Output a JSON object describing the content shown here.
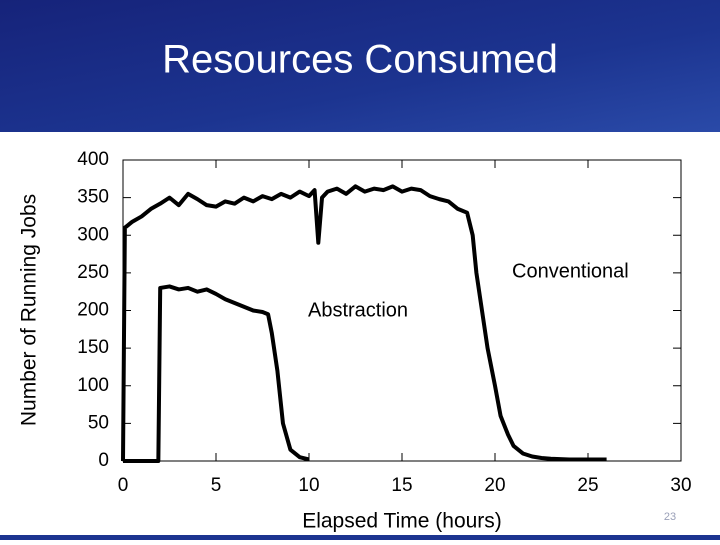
{
  "header": {
    "title": "Resources Consumed"
  },
  "chart_data": {
    "type": "line",
    "x_label": "Elapsed Time (hours)",
    "y_label": "Number of Running Jobs",
    "xlim": [
      0,
      30
    ],
    "xticks": [
      0,
      5,
      10,
      15,
      20,
      25,
      30
    ],
    "ylim": [
      0,
      400
    ],
    "yticks": [
      0,
      50,
      100,
      150,
      200,
      250,
      300,
      350,
      400
    ],
    "grid": false,
    "series": [
      {
        "name": "Conventional",
        "color": "#000000",
        "x": [
          0,
          0.1,
          0.5,
          1,
          1.5,
          2,
          2.5,
          3,
          3.5,
          4,
          4.5,
          5,
          5.5,
          6,
          6.5,
          7,
          7.5,
          8,
          8.5,
          9,
          9.5,
          10,
          10.3,
          10.5,
          10.7,
          11,
          11.5,
          12,
          12.5,
          13,
          13.5,
          14,
          14.5,
          15,
          15.5,
          16,
          16.5,
          17,
          17.5,
          18,
          18.5,
          18.8,
          19,
          19.3,
          19.6,
          20,
          20.3,
          20.7,
          21,
          21.5,
          22,
          22.5,
          23,
          24,
          25,
          26
        ],
        "values": [
          0,
          310,
          318,
          325,
          335,
          342,
          350,
          340,
          355,
          348,
          340,
          338,
          345,
          342,
          350,
          345,
          352,
          348,
          355,
          350,
          358,
          352,
          360,
          290,
          350,
          358,
          362,
          355,
          365,
          358,
          362,
          360,
          365,
          358,
          362,
          360,
          352,
          348,
          345,
          335,
          330,
          300,
          250,
          200,
          150,
          100,
          60,
          35,
          20,
          10,
          6,
          4,
          3,
          2,
          2,
          2
        ]
      },
      {
        "name": "Abstraction",
        "color": "#000000",
        "x": [
          0,
          1.9,
          2,
          2.5,
          3,
          3.5,
          4,
          4.5,
          5,
          5.5,
          6,
          6.5,
          7,
          7.5,
          7.8,
          8,
          8.3,
          8.6,
          9,
          9.5,
          10
        ],
        "values": [
          0,
          0,
          230,
          232,
          228,
          230,
          225,
          228,
          222,
          215,
          210,
          205,
          200,
          198,
          195,
          170,
          120,
          50,
          15,
          5,
          2
        ]
      }
    ]
  },
  "footer": {
    "page_number": "23"
  }
}
